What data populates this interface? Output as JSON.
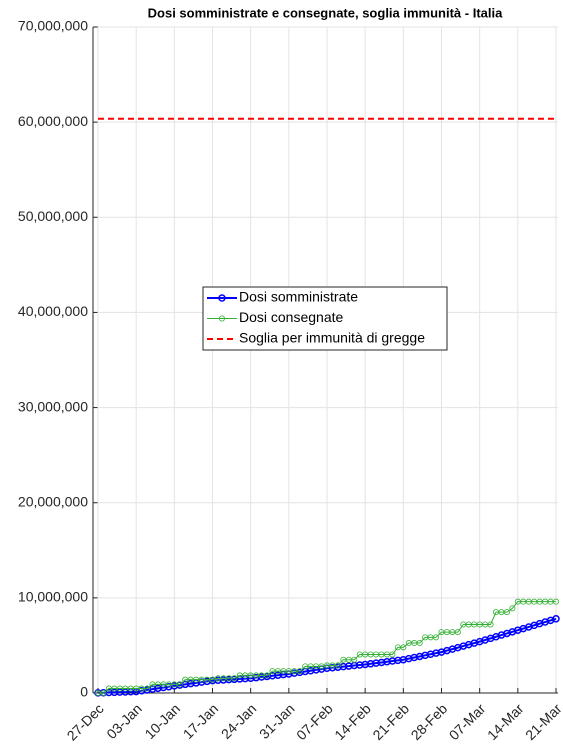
{
  "chart_data": {
    "type": "line",
    "title": "Dosi somministrate e consegnate, soglia immunità - Italia",
    "categories": [
      "27-Dec",
      null,
      null,
      null,
      null,
      null,
      null,
      "03-Jan",
      null,
      null,
      null,
      null,
      null,
      null,
      "10-Jan",
      null,
      null,
      null,
      null,
      null,
      null,
      "17-Jan",
      null,
      null,
      null,
      null,
      null,
      null,
      "24-Jan",
      null,
      null,
      null,
      null,
      null,
      null,
      "31-Jan",
      null,
      null,
      null,
      null,
      null,
      null,
      "07-Feb",
      null,
      null,
      null,
      null,
      null,
      null,
      "14-Feb",
      null,
      null,
      null,
      null,
      null,
      null,
      "21-Feb",
      null,
      null,
      null,
      null,
      null,
      null,
      "28-Feb",
      null,
      null,
      null,
      null,
      null,
      null,
      "07-Mar",
      null,
      null,
      null,
      null,
      null,
      null,
      "14-Mar",
      null,
      null,
      null,
      null,
      null,
      null,
      "21-Mar"
    ],
    "series": [
      {
        "name": "Dosi somministrate",
        "color": "#0000ff",
        "style": "solid",
        "marker": true,
        "width": 2,
        "values": [
          10000,
          30000,
          50000,
          70000,
          90000,
          110000,
          130000,
          150000,
          240000,
          320000,
          410000,
          490000,
          580000,
          660000,
          750000,
          830000,
          910000,
          990000,
          1060000,
          1140000,
          1220000,
          1300000,
          1340000,
          1370000,
          1410000,
          1440000,
          1480000,
          1510000,
          1550000,
          1610000,
          1680000,
          1740000,
          1810000,
          1870000,
          1940000,
          2000000,
          2090000,
          2170000,
          2260000,
          2340000,
          2430000,
          2510000,
          2600000,
          2660000,
          2710000,
          2770000,
          2830000,
          2890000,
          2940000,
          3000000,
          3070000,
          3140000,
          3210000,
          3290000,
          3360000,
          3430000,
          3500000,
          3610000,
          3730000,
          3840000,
          3960000,
          4070000,
          4190000,
          4300000,
          4460000,
          4610000,
          4770000,
          4930000,
          5090000,
          5240000,
          5400000,
          5570000,
          5740000,
          5910000,
          6090000,
          6260000,
          6430000,
          6600000,
          6770000,
          6940000,
          7110000,
          7290000,
          7460000,
          7630000,
          7800000
        ]
      },
      {
        "name": "Dosi consegnate",
        "color": "#33b033",
        "style": "solid",
        "marker": true,
        "width": 1,
        "values": [
          0,
          0,
          470000,
          470000,
          470000,
          470000,
          470000,
          470000,
          470000,
          470000,
          900000,
          900000,
          900000,
          900000,
          900000,
          900000,
          1400000,
          1400000,
          1400000,
          1400000,
          1400000,
          1400000,
          1550000,
          1550000,
          1550000,
          1550000,
          1850000,
          1850000,
          1850000,
          1850000,
          1850000,
          1850000,
          2300000,
          2300000,
          2300000,
          2300000,
          2300000,
          2300000,
          2800000,
          2800000,
          2800000,
          2800000,
          2900000,
          2900000,
          2900000,
          3500000,
          3500000,
          3500000,
          4050000,
          4050000,
          4050000,
          4050000,
          4050000,
          4050000,
          4050000,
          4800000,
          4800000,
          5250000,
          5250000,
          5250000,
          5850000,
          5850000,
          5850000,
          6400000,
          6400000,
          6400000,
          6400000,
          7200000,
          7200000,
          7200000,
          7200000,
          7200000,
          7200000,
          8500000,
          8500000,
          8500000,
          8900000,
          9600000,
          9600000,
          9600000,
          9600000,
          9600000,
          9600000,
          9600000,
          9600000
        ]
      },
      {
        "name": "Soglia per immunità di gregge",
        "color": "#ff0000",
        "style": "dashed",
        "marker": false,
        "width": 2,
        "values": [
          60360000,
          60360000,
          60360000,
          60360000,
          60360000,
          60360000,
          60360000,
          60360000,
          60360000,
          60360000,
          60360000,
          60360000,
          60360000,
          60360000,
          60360000,
          60360000,
          60360000,
          60360000,
          60360000,
          60360000,
          60360000,
          60360000,
          60360000,
          60360000,
          60360000,
          60360000,
          60360000,
          60360000,
          60360000,
          60360000,
          60360000,
          60360000,
          60360000,
          60360000,
          60360000,
          60360000,
          60360000,
          60360000,
          60360000,
          60360000,
          60360000,
          60360000,
          60360000,
          60360000,
          60360000,
          60360000,
          60360000,
          60360000,
          60360000,
          60360000,
          60360000,
          60360000,
          60360000,
          60360000,
          60360000,
          60360000,
          60360000,
          60360000,
          60360000,
          60360000,
          60360000,
          60360000,
          60360000,
          60360000,
          60360000,
          60360000,
          60360000,
          60360000,
          60360000,
          60360000,
          60360000,
          60360000,
          60360000,
          60360000,
          60360000,
          60360000,
          60360000,
          60360000,
          60360000,
          60360000,
          60360000,
          60360000,
          60360000,
          60360000,
          60360000
        ]
      }
    ],
    "ylim": [
      0,
      70000000
    ],
    "yticks": [
      0,
      {
        "value": 10000000,
        "label": "10,000,000"
      },
      {
        "value": 20000000,
        "label": "20,000,000"
      },
      {
        "value": 30000000,
        "label": "30,000,000"
      },
      {
        "value": 40000000,
        "label": "40,000,000"
      },
      {
        "value": 50000000,
        "label": "50,000,000"
      },
      {
        "value": 60000000,
        "label": "60,000,000"
      },
      {
        "value": 70000000,
        "label": "70,000,000"
      }
    ],
    "grid": true,
    "legend": "center"
  }
}
